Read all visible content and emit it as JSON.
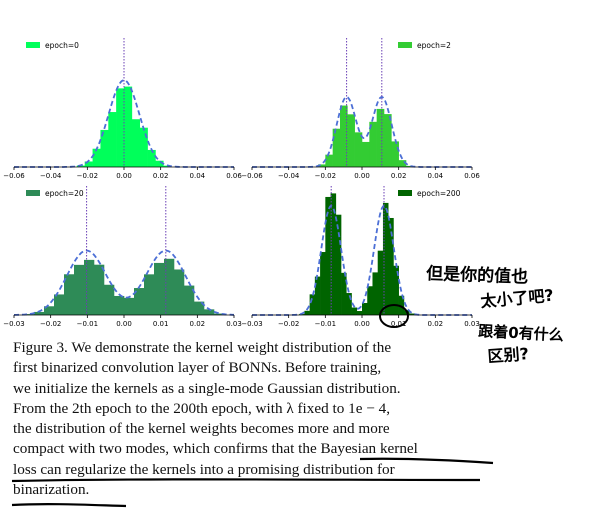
{
  "figure": {
    "panels": [
      {
        "legend": "epoch=0",
        "color": "#00ff5a",
        "xticks": [
          "−0.06",
          "−0.04",
          "−0.02",
          "0.00",
          "0.02",
          "0.04",
          "0.06"
        ]
      },
      {
        "legend": "epoch=2",
        "color": "#33cc33",
        "xticks": [
          "−0.06",
          "−0.04",
          "−0.02",
          "0.00",
          "0.02",
          "0.04",
          "0.06"
        ]
      },
      {
        "legend": "epoch=20",
        "color": "#2e8b57",
        "xticks": [
          "−0.03",
          "−0.02",
          "−0.01",
          "0.00",
          "0.01",
          "0.02",
          "0.03"
        ]
      },
      {
        "legend": "epoch=200",
        "color": "#006400",
        "xticks": [
          "−0.03",
          "−0.02",
          "−0.01",
          "0.00",
          "0.01",
          "0.02",
          "0.03"
        ]
      }
    ]
  },
  "caption_lines": [
    "Figure 3. We demonstrate the kernel weight distribution of the",
    "first binarized convolution layer of BONNs. Before training,",
    "we initialize the kernels as a single-mode Gaussian distribution.",
    "From the 2th epoch to the 200th epoch, with λ fixed to 1e − 4,",
    "the distribution of the kernel weights becomes more and more",
    "compact with two modes, which confirms that the Bayesian kernel",
    "loss can regularize the kernels into a promising distribution for",
    "binarization."
  ],
  "annotations": {
    "note_lines": [
      "但是你的值也",
      "太小了吧?",
      "跟着0有什么",
      "区别?"
    ]
  }
}
